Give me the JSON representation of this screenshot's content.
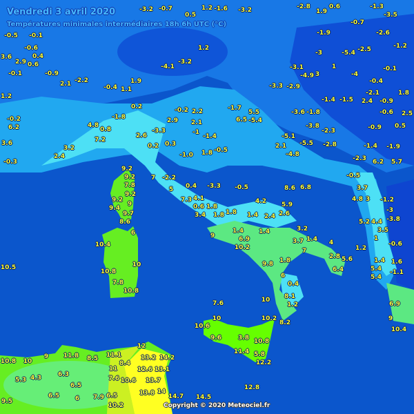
{
  "header": {
    "title": "Vendredi 3 avril 2020",
    "subtitle": "Températures minimales intermédiaires 18h 6h UTC (°C)"
  },
  "footer": {
    "copyright": "Copyright © 2020 Meteociel.fr"
  },
  "colors": {
    "sea": "#0b56cc",
    "north": "#1878e6",
    "cold": "#0f4fd6",
    "light_blue": "#21a8f0",
    "cyan": "#4de0f5",
    "mint": "#5ce882",
    "green": "#66ee22",
    "lime": "#66ff00",
    "yellow": "#ffff22",
    "label": "#ffff33"
  },
  "labels": [
    "-0.5",
    "-0.1",
    "-0.6",
    "0.4",
    "3.6",
    "2.9",
    "0.6",
    "-0.1",
    "-0.9",
    "1.2",
    "2.1",
    "-2.2",
    "-0.4",
    "1.1",
    "1.9",
    "-4.1",
    "-3.2",
    "1.2",
    "-5.4",
    "-2.5",
    "-2.6",
    "-3.5",
    "-1.3",
    "0.6",
    "-0.7",
    "-1.9",
    "-3",
    "1",
    "-4",
    "-0.1",
    "-1.2",
    "-2.1",
    "-0.9",
    "1.8",
    "-0.4",
    "-1.5",
    "-1.4",
    "2.4",
    "-0.6",
    "2.5",
    "-0.9",
    "0.5",
    "-1.9",
    "6.2",
    "5.7",
    "-2.3",
    "-1.4",
    "-3.6",
    "-1.8",
    "-3.8",
    "-2.3",
    "-2.8",
    "-5.5",
    "-5.1",
    "2.1",
    "-4.8",
    "-5.4",
    "6.5",
    "5.5",
    "-1.7",
    "-0.2",
    "2.2",
    "2.9",
    "2.1",
    "-1",
    "-1.4",
    "0.2",
    "-1.8",
    "-3.3",
    "0.3",
    "0.2",
    "-1.0",
    "1.8",
    "-0.5",
    "4.8",
    "0.8",
    "2.6",
    "7.2",
    "3.2",
    "2.4",
    "-0.2",
    "6.2",
    "3.6",
    "-0.3",
    "9.2",
    "9.2",
    "7",
    "-2.2",
    "0.4",
    "-3.3",
    "-0.5",
    "8.6",
    "6.8",
    "9.2",
    "7.8",
    "9.2",
    "9.4",
    "9",
    "9.7",
    "8.6",
    "5",
    "7.3",
    "4.1",
    "0.6",
    "1.8",
    "3.4",
    "4.2",
    "5.9",
    "2.6",
    "2.4",
    "1.4",
    "1.8",
    "1.8",
    "6",
    "10.4",
    "1.4",
    "6.9",
    "10.2",
    "1.4",
    "3.2",
    "3.7",
    "1.4",
    "7",
    "4",
    "2.8",
    "5.6",
    "6.4",
    "9.8",
    "1.8",
    "6",
    "0.4",
    "8.1",
    "1.2",
    "10",
    "10",
    "10.8",
    "7.8",
    "10.8",
    "9",
    "10.5",
    "7.6",
    "10",
    "10.6",
    "9.6",
    "3.8",
    "10.8",
    "11.4",
    "5.8",
    "12.2",
    "10.2",
    "8.2",
    "12.8",
    "14.5",
    "12",
    "13.2",
    "14.2",
    "12.6",
    "13.1",
    "13.7",
    "13.8",
    "14",
    "14.7",
    "9",
    "11.8",
    "8.5",
    "11.1",
    "8.4",
    "11",
    "7.6",
    "10.6",
    "6.5",
    "7.9",
    "10.2",
    "6.3",
    "6.5",
    "6",
    "6.5",
    "4.3",
    "5.3",
    "10.8",
    "10",
    "9.5",
    "-0.5",
    "4.8",
    "3",
    "3.7",
    "-1.2",
    "-3",
    "-3.8",
    "5.2",
    "4.4",
    "3.5",
    "1",
    "-0.6",
    "1.2",
    "1.4",
    "1.6",
    "5.4",
    "5.4",
    "-1.1",
    "6.9",
    "9",
    "10.4",
    "-3.2",
    "-0.7",
    "1.2",
    "-1.6",
    "-3.2",
    "0.5",
    "-2.8",
    "1.9",
    "-4.9",
    "-3.1",
    "-3.3",
    "-2.9",
    "3"
  ]
}
